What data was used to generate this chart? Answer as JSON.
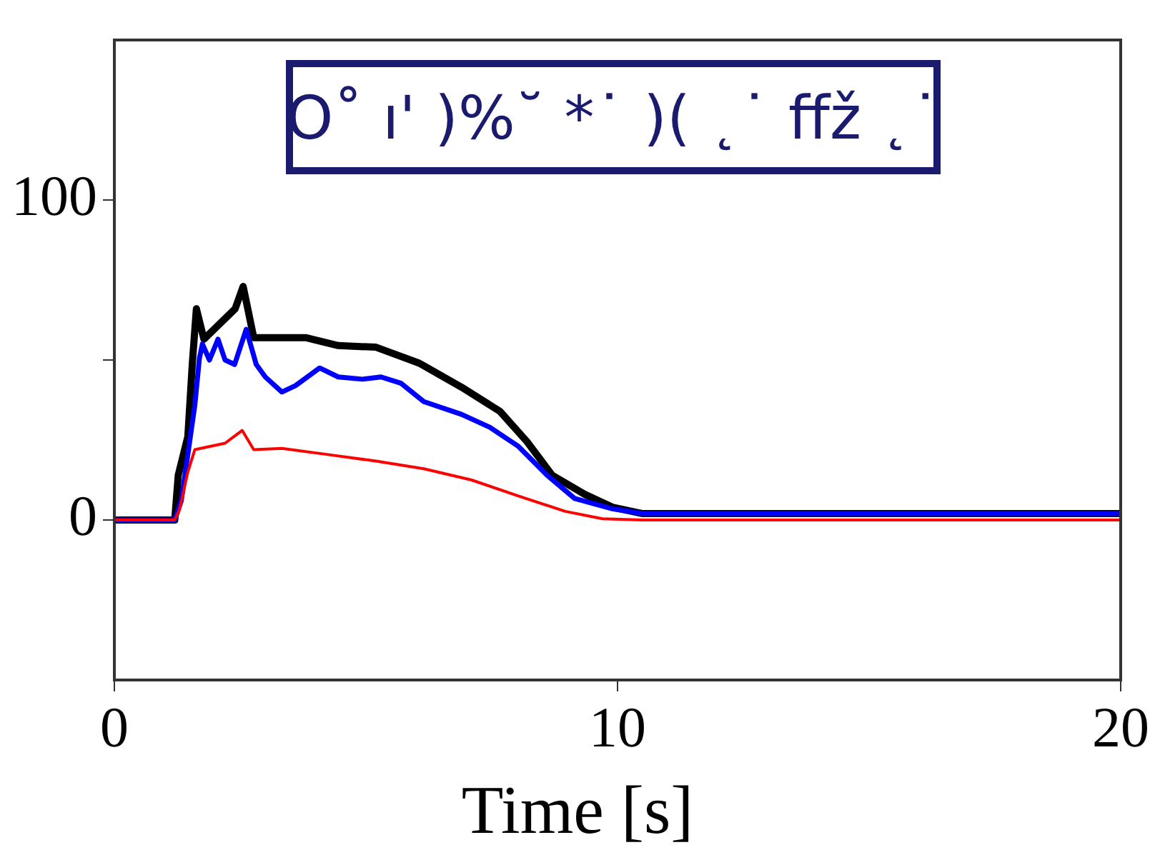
{
  "chart_data": {
    "type": "line",
    "title": "O˚ ı' )%˘ *˙ )( ˛˙ ffž ˛˙",
    "xlabel": "Time [s]",
    "xlim": [
      0,
      20
    ],
    "xticks": [
      0,
      10,
      20
    ],
    "ylim": [
      -50,
      150
    ],
    "yticks": [
      0,
      {
        "value": 50,
        "label": null
      },
      100
    ],
    "grid": false,
    "legend": false,
    "marker": "none",
    "line_style": "solid",
    "series": [
      {
        "color": "#000000",
        "x": [
          0,
          1.2,
          1.27,
          1.46,
          1.55,
          1.63,
          1.78,
          2.4,
          2.56,
          2.77,
          3.8,
          4.45,
          5.2,
          6.06,
          6.9,
          7.66,
          8.2,
          8.7,
          9.35,
          9.9,
          10.5,
          15,
          20
        ],
        "values": [
          0,
          0,
          14,
          26,
          49,
          66,
          56.5,
          66,
          73,
          57,
          57,
          54.5,
          54,
          49,
          41.5,
          34,
          24.5,
          14,
          8,
          4,
          2,
          2,
          2
        ]
      },
      {
        "color": "#0000ff",
        "x": [
          0,
          1.2,
          1.33,
          1.6,
          1.69,
          1.75,
          1.89,
          2.06,
          2.2,
          2.39,
          2.62,
          2.82,
          3.0,
          3.33,
          3.6,
          4.08,
          4.45,
          4.93,
          5.3,
          5.7,
          6.15,
          6.9,
          7.46,
          8.03,
          8.6,
          9.15,
          9.9,
          10.5,
          15,
          20
        ],
        "values": [
          0,
          0,
          6,
          36,
          50.5,
          55,
          50,
          56.5,
          50,
          48.6,
          59.6,
          48.6,
          44.7,
          40,
          42,
          47.5,
          44.7,
          44,
          44.7,
          42.7,
          37,
          33,
          29,
          23,
          14,
          6.7,
          3.5,
          2,
          2,
          2
        ]
      },
      {
        "color": "#ff0000",
        "x": [
          0,
          1.2,
          1.3,
          1.46,
          1.6,
          2.2,
          2.54,
          2.77,
          3.33,
          4.27,
          5.2,
          6.15,
          7.1,
          8.03,
          8.96,
          9.7,
          10.5,
          15,
          20
        ],
        "values": [
          0,
          0,
          3.5,
          15,
          22,
          24,
          28,
          22,
          22.4,
          20.4,
          18.4,
          16,
          12.5,
          7.5,
          2.7,
          0.4,
          0,
          0,
          0
        ]
      }
    ]
  }
}
